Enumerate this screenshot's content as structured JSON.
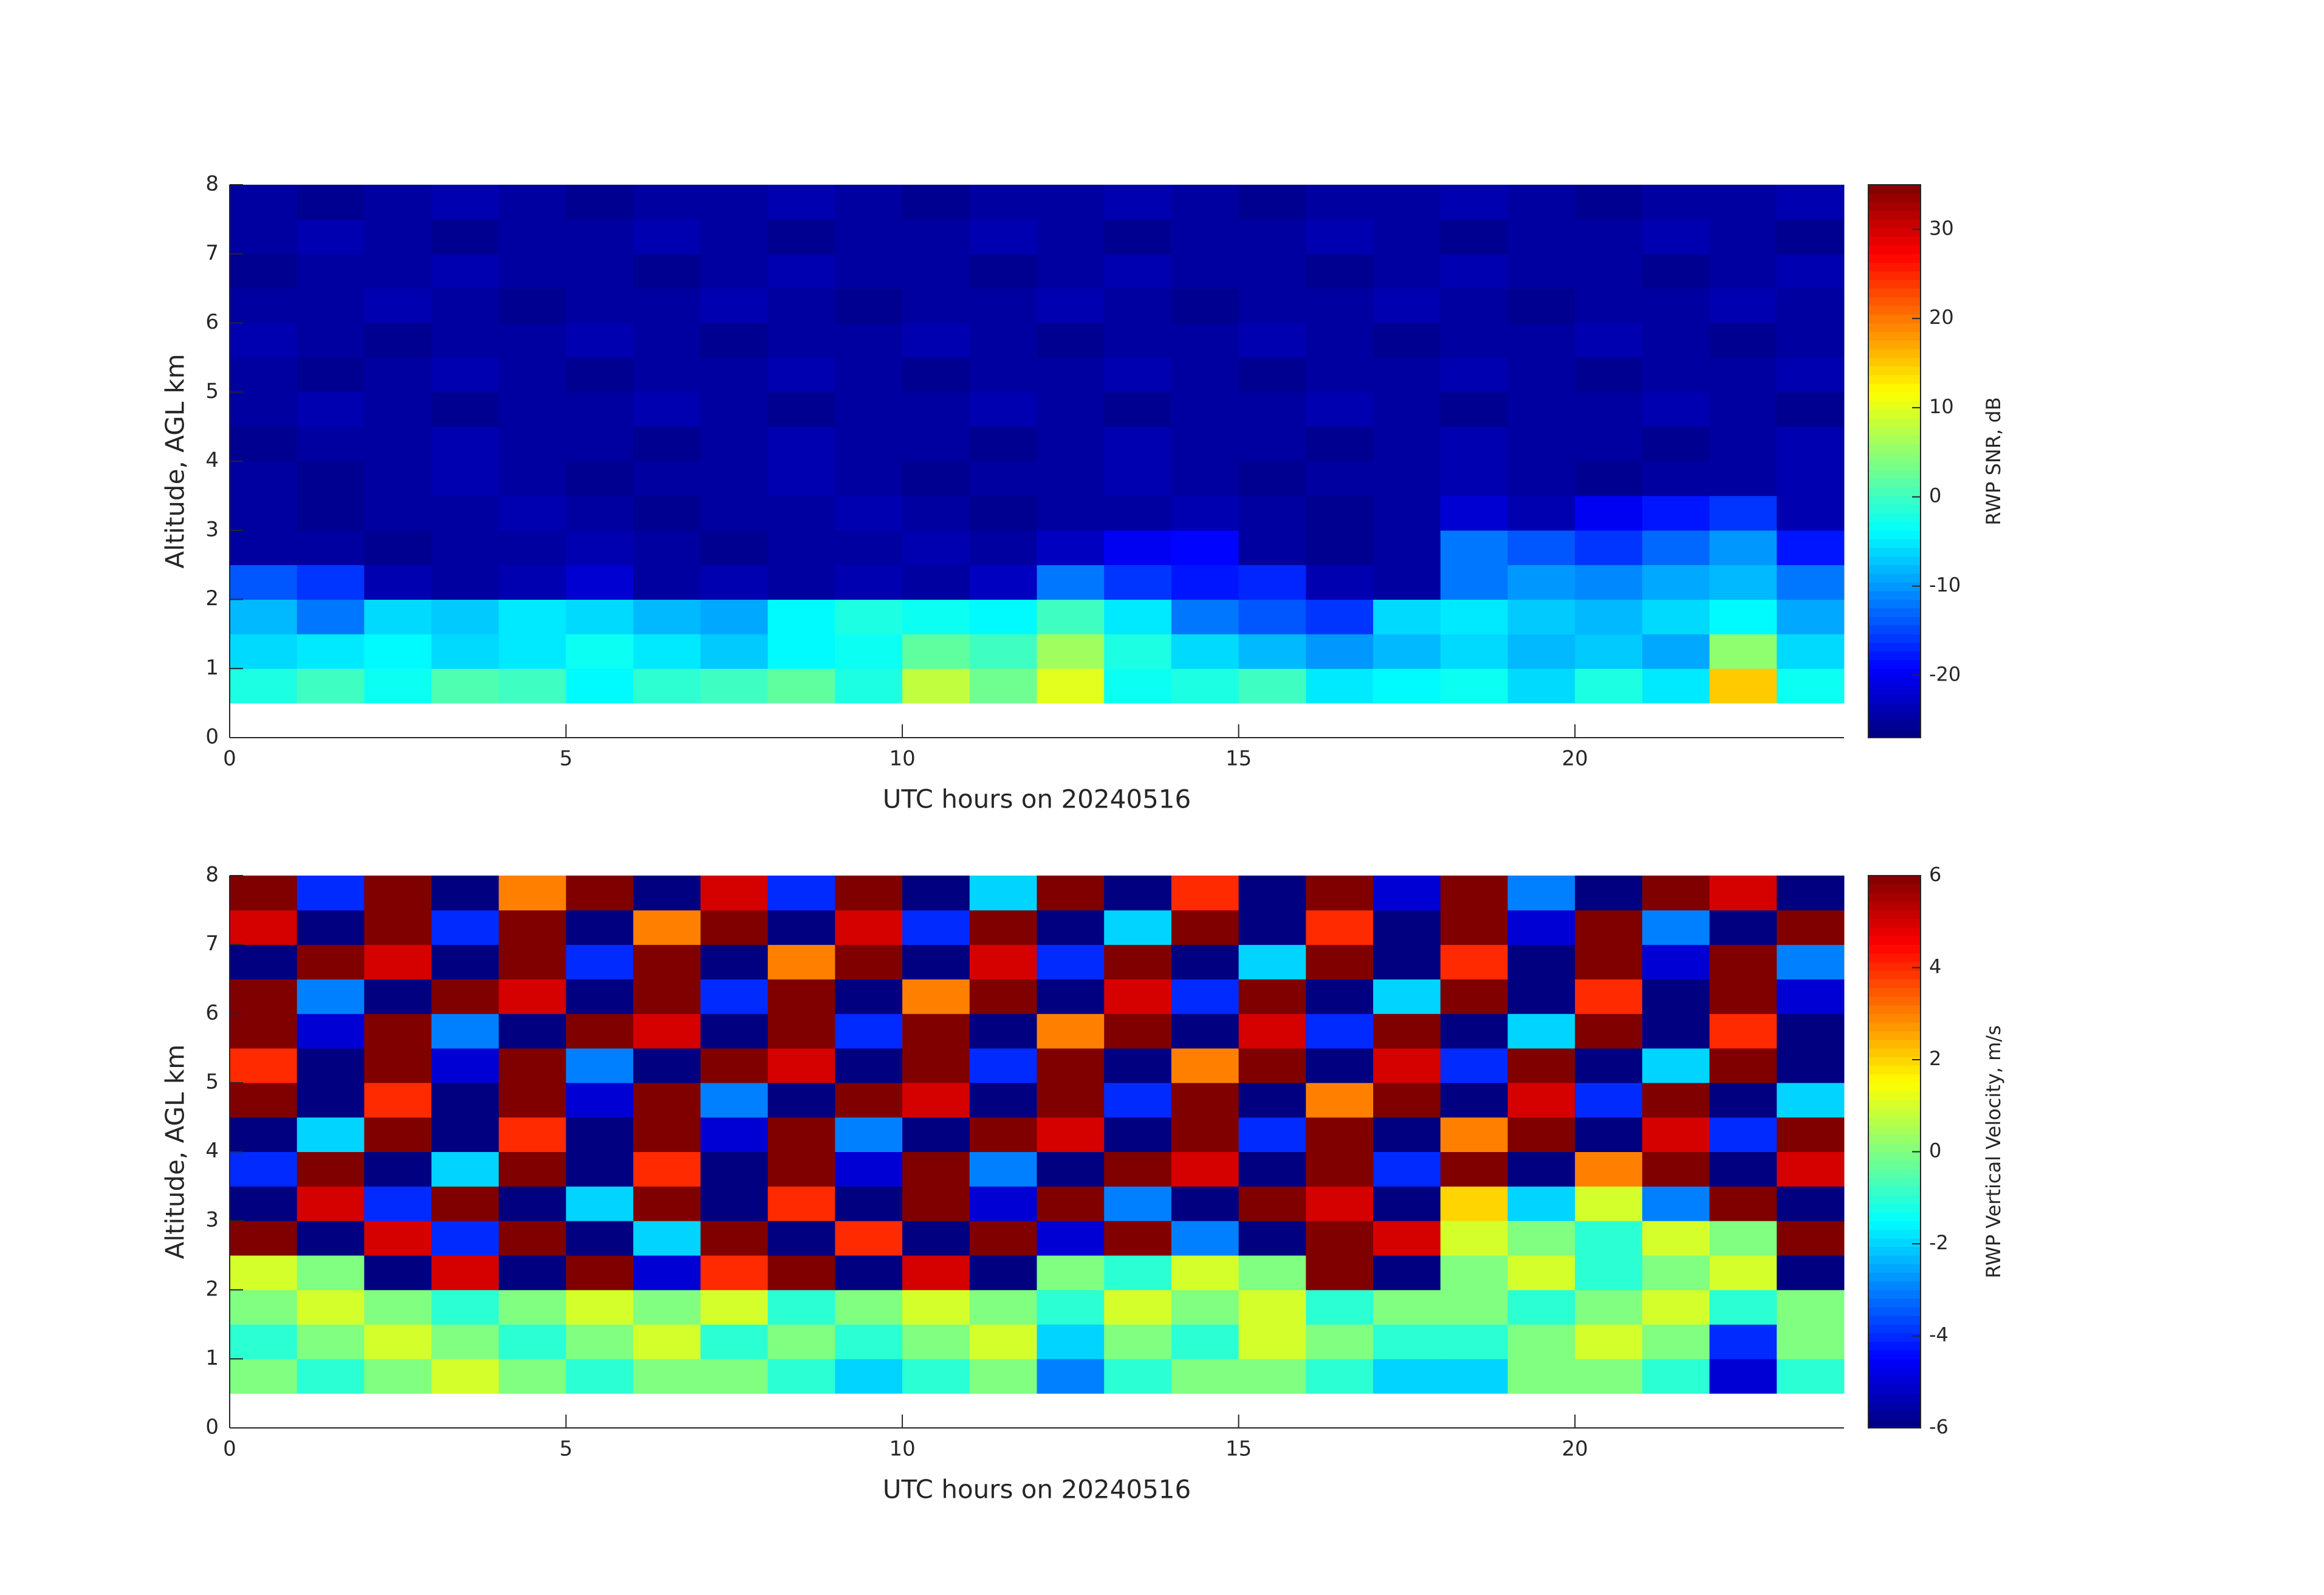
{
  "chart_data": [
    {
      "type": "heatmap",
      "colormap": "jet",
      "xlabel": "UTC hours on 20240516",
      "ylabel": "Altitude, AGL km",
      "xlim": [
        0,
        24
      ],
      "xticks": [
        0,
        5,
        10,
        15,
        20
      ],
      "ylim": [
        0,
        8
      ],
      "yticks": [
        0,
        1,
        2,
        3,
        4,
        5,
        6,
        7,
        8
      ],
      "x": [
        0.5,
        1.5,
        2.5,
        3.5,
        4.5,
        5.5,
        6.5,
        7.5,
        8.5,
        9.5,
        10.5,
        11.5,
        12.5,
        13.5,
        14.5,
        15.5,
        16.5,
        17.5,
        18.5,
        19.5,
        20.5,
        21.5,
        22.5,
        23.5
      ],
      "y": [
        0.25,
        0.75,
        1.25,
        1.75,
        2.25,
        2.75,
        3.25,
        3.75,
        4.25,
        4.75,
        5.25,
        5.75,
        6.25,
        6.75,
        7.25,
        7.75
      ],
      "colorbar": {
        "label": "RWP SNR, dB",
        "clim": [
          -27,
          35
        ],
        "ticks": [
          -20,
          -10,
          0,
          10,
          20,
          30
        ]
      },
      "values": [
        [
          null,
          null,
          null,
          null,
          null,
          null,
          null,
          null,
          null,
          null,
          null,
          null,
          null,
          null,
          null,
          null,
          null,
          null,
          null,
          null,
          null,
          null,
          null,
          null
        ],
        [
          -2,
          0,
          -3,
          1,
          0,
          -4,
          -1,
          0,
          2,
          -2,
          8,
          3,
          10,
          -3,
          -2,
          0,
          -5,
          -4,
          -3,
          -6,
          -2,
          -5,
          15,
          -3
        ],
        [
          -6,
          -5,
          -4,
          -6,
          -5,
          -3,
          -5,
          -7,
          -4,
          -3,
          2,
          0,
          6,
          -2,
          -6,
          -8,
          -10,
          -8,
          -6,
          -8,
          -7,
          -9,
          5,
          -6
        ],
        [
          -8,
          -12,
          -6,
          -7,
          -5,
          -6,
          -8,
          -9,
          -4,
          -2,
          -3,
          -4,
          0,
          -5,
          -12,
          -14,
          -16,
          -6,
          -5,
          -7,
          -8,
          -6,
          -4,
          -9
        ],
        [
          -14,
          -16,
          -24,
          -25,
          -24,
          -22,
          -25,
          -24,
          -25,
          -24,
          -25,
          -23,
          -12,
          -16,
          -18,
          -17,
          -24,
          -25,
          -12,
          -10,
          -11,
          -9,
          -8,
          -12
        ],
        [
          -25,
          -25,
          -26,
          -25,
          -25,
          -24,
          -25,
          -26,
          -25,
          -25,
          -24,
          -25,
          -23,
          -20,
          -19,
          -25,
          -26,
          -25,
          -12,
          -14,
          -16,
          -13,
          -10,
          -18
        ],
        [
          -25,
          -26,
          -25,
          -25,
          -24,
          -25,
          -26,
          -25,
          -25,
          -24,
          -25,
          -26,
          -25,
          -25,
          -24,
          -25,
          -26,
          -25,
          -22,
          -24,
          -20,
          -18,
          -16,
          -24
        ],
        [
          -25,
          -26,
          -25,
          -24,
          -25,
          -26,
          -25,
          -25,
          -24,
          -25,
          -26,
          -25,
          -25,
          -24,
          -25,
          -26,
          -25,
          -25,
          -24,
          -25,
          -26,
          -25,
          -25,
          -24
        ],
        [
          -26,
          -25,
          -25,
          -24,
          -25,
          -25,
          -26,
          -25,
          -24,
          -25,
          -25,
          -26,
          -25,
          -24,
          -25,
          -25,
          -26,
          -25,
          -24,
          -25,
          -25,
          -26,
          -25,
          -24
        ],
        [
          -25,
          -24,
          -25,
          -26,
          -25,
          -25,
          -24,
          -25,
          -26,
          -25,
          -25,
          -24,
          -25,
          -26,
          -25,
          -25,
          -24,
          -25,
          -26,
          -25,
          -25,
          -24,
          -25,
          -26
        ],
        [
          -25,
          -26,
          -25,
          -24,
          -25,
          -26,
          -25,
          -25,
          -24,
          -25,
          -26,
          -25,
          -25,
          -24,
          -25,
          -26,
          -25,
          -25,
          -24,
          -25,
          -26,
          -25,
          -25,
          -24
        ],
        [
          -24,
          -25,
          -26,
          -25,
          -25,
          -24,
          -25,
          -26,
          -25,
          -25,
          -24,
          -25,
          -26,
          -25,
          -25,
          -24,
          -25,
          -26,
          -25,
          -25,
          -24,
          -25,
          -26,
          -25
        ],
        [
          -25,
          -25,
          -24,
          -25,
          -26,
          -25,
          -25,
          -24,
          -25,
          -26,
          -25,
          -25,
          -24,
          -25,
          -26,
          -25,
          -25,
          -24,
          -25,
          -26,
          -25,
          -25,
          -24,
          -25
        ],
        [
          -26,
          -25,
          -25,
          -24,
          -25,
          -25,
          -26,
          -25,
          -24,
          -25,
          -25,
          -26,
          -25,
          -24,
          -25,
          -25,
          -26,
          -25,
          -24,
          -25,
          -25,
          -26,
          -25,
          -24
        ],
        [
          -25,
          -24,
          -25,
          -26,
          -25,
          -25,
          -24,
          -25,
          -26,
          -25,
          -25,
          -24,
          -25,
          -26,
          -25,
          -25,
          -24,
          -25,
          -26,
          -25,
          -25,
          -24,
          -25,
          -26
        ],
        [
          -25,
          -26,
          -25,
          -24,
          -25,
          -26,
          -25,
          -25,
          -24,
          -25,
          -26,
          -25,
          -25,
          -24,
          -25,
          -26,
          -25,
          -25,
          -24,
          -25,
          -26,
          -25,
          -25,
          -24
        ]
      ]
    },
    {
      "type": "heatmap",
      "colormap": "jet",
      "xlabel": "UTC hours on 20240516",
      "ylabel": "Altitude, AGL km",
      "xlim": [
        0,
        24
      ],
      "xticks": [
        0,
        5,
        10,
        15,
        20
      ],
      "ylim": [
        0,
        8
      ],
      "yticks": [
        0,
        1,
        2,
        3,
        4,
        5,
        6,
        7,
        8
      ],
      "x": [
        0.5,
        1.5,
        2.5,
        3.5,
        4.5,
        5.5,
        6.5,
        7.5,
        8.5,
        9.5,
        10.5,
        11.5,
        12.5,
        13.5,
        14.5,
        15.5,
        16.5,
        17.5,
        18.5,
        19.5,
        20.5,
        21.5,
        22.5,
        23.5
      ],
      "y": [
        0.25,
        0.75,
        1.25,
        1.75,
        2.25,
        2.75,
        3.25,
        3.75,
        4.25,
        4.75,
        5.25,
        5.75,
        6.25,
        6.75,
        7.25,
        7.75
      ],
      "colorbar": {
        "label": "RWP Vertical Velocity, m/s",
        "clim": [
          -6,
          6
        ],
        "ticks": [
          -6,
          -4,
          -2,
          0,
          2,
          4,
          6
        ]
      },
      "values": [
        [
          null,
          null,
          null,
          null,
          null,
          null,
          null,
          null,
          null,
          null,
          null,
          null,
          null,
          null,
          null,
          null,
          null,
          null,
          null,
          null,
          null,
          null,
          null,
          null
        ],
        [
          0,
          -1,
          0,
          1,
          0,
          -1,
          0,
          0,
          -1,
          -2,
          -1,
          0,
          -3,
          -1,
          0,
          0,
          -1,
          -2,
          -2,
          0,
          0,
          -1,
          -5,
          -1
        ],
        [
          -1,
          0,
          1,
          0,
          -1,
          0,
          1,
          -1,
          0,
          -1,
          0,
          1,
          -2,
          0,
          -1,
          1,
          0,
          -1,
          -1,
          0,
          1,
          0,
          -4,
          0
        ],
        [
          0,
          1,
          0,
          -1,
          0,
          1,
          0,
          1,
          -1,
          0,
          1,
          0,
          -1,
          1,
          0,
          1,
          -1,
          0,
          0,
          -1,
          0,
          1,
          -1,
          0
        ],
        [
          1,
          0,
          -6,
          5,
          -6,
          6,
          -5,
          4,
          6,
          -6,
          5,
          -6,
          0,
          -1,
          1,
          0,
          6,
          -6,
          0,
          1,
          -1,
          0,
          1,
          -6
        ],
        [
          6,
          -6,
          5,
          -4,
          6,
          -6,
          -2,
          6,
          -6,
          4,
          -6,
          6,
          -5,
          6,
          -3,
          -6,
          6,
          5,
          1,
          0,
          -1,
          1,
          0,
          6
        ],
        [
          -6,
          5,
          -4,
          6,
          -6,
          -2,
          6,
          -6,
          4,
          -6,
          6,
          -5,
          6,
          -3,
          -6,
          6,
          5,
          -6,
          2,
          -2,
          1,
          -3,
          6,
          -6
        ],
        [
          -4,
          6,
          -6,
          -2,
          6,
          -6,
          4,
          -6,
          6,
          -5,
          6,
          -3,
          -6,
          6,
          5,
          -6,
          6,
          -4,
          6,
          -6,
          3,
          6,
          -6,
          5
        ],
        [
          -6,
          -2,
          6,
          -6,
          4,
          -6,
          6,
          -5,
          6,
          -3,
          -6,
          6,
          5,
          -6,
          6,
          -4,
          6,
          -6,
          3,
          6,
          -6,
          5,
          -4,
          6
        ],
        [
          6,
          -6,
          4,
          -6,
          6,
          -5,
          6,
          -3,
          -6,
          6,
          5,
          -6,
          6,
          -4,
          6,
          -6,
          3,
          6,
          -6,
          5,
          -4,
          6,
          -6,
          -2
        ],
        [
          4,
          -6,
          6,
          -5,
          6,
          -3,
          -6,
          6,
          5,
          -6,
          6,
          -4,
          6,
          -6,
          3,
          6,
          -6,
          5,
          -4,
          6,
          -6,
          -2,
          6,
          -6
        ],
        [
          6,
          -5,
          6,
          -3,
          -6,
          6,
          5,
          -6,
          6,
          -4,
          6,
          -6,
          3,
          6,
          -6,
          5,
          -4,
          6,
          -6,
          -2,
          6,
          -6,
          4,
          -6
        ],
        [
          6,
          -3,
          -6,
          6,
          5,
          -6,
          6,
          -4,
          6,
          -6,
          3,
          6,
          -6,
          5,
          -4,
          6,
          -6,
          -2,
          6,
          -6,
          4,
          -6,
          6,
          -5
        ],
        [
          -6,
          6,
          5,
          -6,
          6,
          -4,
          6,
          -6,
          3,
          6,
          -6,
          5,
          -4,
          6,
          -6,
          -2,
          6,
          -6,
          4,
          -6,
          6,
          -5,
          6,
          -3
        ],
        [
          5,
          -6,
          6,
          -4,
          6,
          -6,
          3,
          6,
          -6,
          5,
          -4,
          6,
          -6,
          -2,
          6,
          -6,
          4,
          -6,
          6,
          -5,
          6,
          -3,
          -6,
          6
        ],
        [
          6,
          -4,
          6,
          -6,
          3,
          6,
          -6,
          5,
          -4,
          6,
          -6,
          -2,
          6,
          -6,
          4,
          -6,
          6,
          -5,
          6,
          -3,
          -6,
          6,
          5,
          -6
        ]
      ]
    }
  ]
}
